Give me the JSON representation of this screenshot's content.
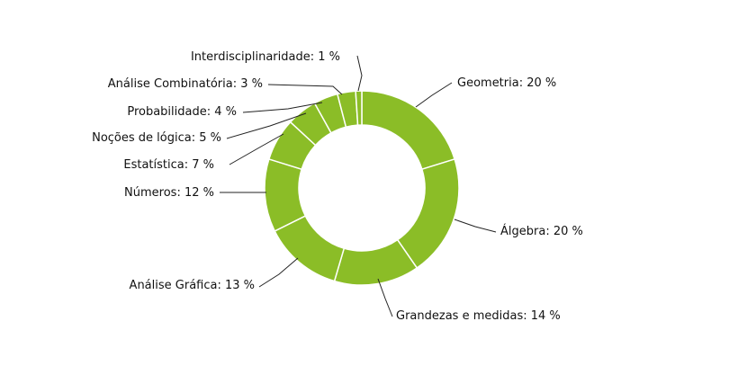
{
  "chart_data": {
    "type": "pie",
    "variant": "donut",
    "legend": "none",
    "start_angle_deg": 0,
    "direction": "clockwise",
    "colors": {
      "fill": "#8bbd27",
      "separator": "#ffffff",
      "leader": "#222222"
    },
    "slices": [
      {
        "name": "Geometria",
        "value": 20,
        "label": "Geometria: 20 %"
      },
      {
        "name": "Álgebra",
        "value": 20,
        "label": "Álgebra: 20 %"
      },
      {
        "name": "Grandezas e medidas",
        "value": 14,
        "label": "Grandezas e medidas: 14 %"
      },
      {
        "name": "Análise Gráfica",
        "value": 13,
        "label": "Análise Gráfica: 13 %"
      },
      {
        "name": "Números",
        "value": 12,
        "label": "Números: 12 %"
      },
      {
        "name": "Estatística",
        "value": 7,
        "label": "Estatística: 7 %"
      },
      {
        "name": "Noções de lógica",
        "value": 5,
        "label": "Noções de lógica: 5 %"
      },
      {
        "name": "Probabilidade",
        "value": 4,
        "label": "Probabilidade: 4 %"
      },
      {
        "name": "Análise Combinatória",
        "value": 3,
        "label": "Análise Combinatória: 3 %"
      },
      {
        "name": "Interdisciplinaridade",
        "value": 1,
        "label": "Interdisciplinaridade: 1 %"
      }
    ]
  }
}
